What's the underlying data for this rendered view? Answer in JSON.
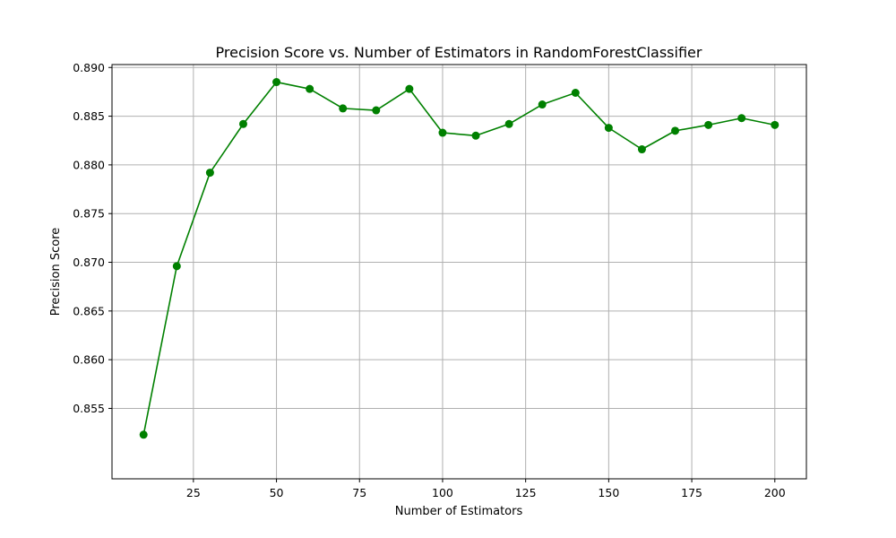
{
  "chart_data": {
    "type": "line",
    "title": "Precision Score vs. Number of Estimators in RandomForestClassifier",
    "xlabel": "Number of Estimators",
    "ylabel": "Precision Score",
    "x": [
      10,
      20,
      30,
      40,
      50,
      60,
      70,
      80,
      90,
      100,
      110,
      120,
      130,
      140,
      150,
      160,
      170,
      180,
      190,
      200
    ],
    "series": [
      {
        "color": "#008000",
        "marker": "circle",
        "values": [
          0.8523,
          0.8696,
          0.8792,
          0.8842,
          0.8885,
          0.8878,
          0.8858,
          0.8856,
          0.8878,
          0.8833,
          0.883,
          0.8842,
          0.8862,
          0.8874,
          0.8838,
          0.8816,
          0.8835,
          0.8841,
          0.8848,
          0.8841
        ]
      }
    ],
    "xlim": [
      0.5,
      209.5
    ],
    "ylim": [
      0.84777,
      0.8903
    ],
    "xticks": [
      25,
      50,
      75,
      100,
      125,
      150,
      175,
      200
    ],
    "xtick_labels": [
      "25",
      "50",
      "75",
      "100",
      "125",
      "150",
      "175",
      "200"
    ],
    "yticks": [
      0.855,
      0.86,
      0.865,
      0.87,
      0.875,
      0.88,
      0.885,
      0.89
    ],
    "ytick_labels": [
      "0.855",
      "0.860",
      "0.865",
      "0.870",
      "0.875",
      "0.880",
      "0.885",
      "0.890"
    ],
    "grid": true,
    "legend": false
  }
}
